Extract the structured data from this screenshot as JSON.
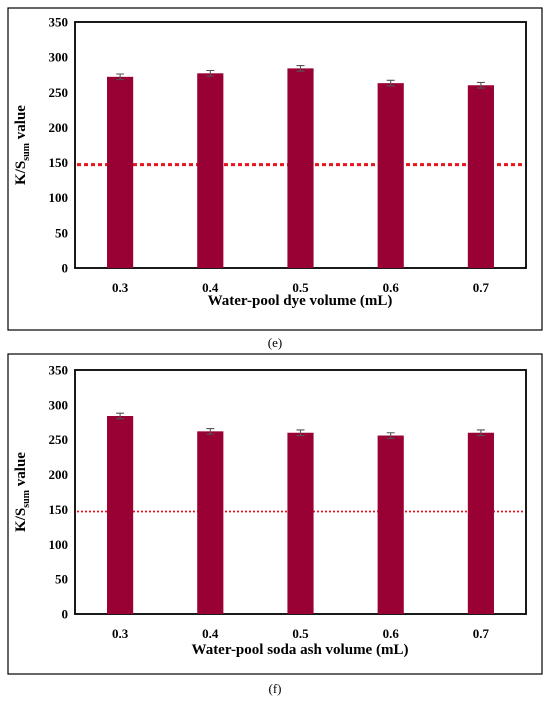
{
  "chart_data": [
    {
      "type": "bar",
      "panel_label": "(e)",
      "categories": [
        "0.3",
        "0.4",
        "0.5",
        "0.6",
        "0.7"
      ],
      "values": [
        272,
        277,
        284,
        263,
        260
      ],
      "errors": [
        4,
        4,
        4,
        4,
        4
      ],
      "reference_line": 147,
      "xlabel": "Water-pool dye volume (mL)",
      "ylabel_main": "K/S",
      "ylabel_sub": "sum",
      "ylabel_tail": " value",
      "ylim": [
        0,
        350
      ],
      "yticks": [
        "0",
        "50",
        "100",
        "150",
        "200",
        "250",
        "300",
        "350"
      ],
      "grid": false,
      "bar_color": "#990033",
      "reference_color": "#e8141e"
    },
    {
      "type": "bar",
      "panel_label": "(f)",
      "categories": [
        "0.3",
        "0.4",
        "0.5",
        "0.6",
        "0.7"
      ],
      "values": [
        284,
        262,
        260,
        256,
        260
      ],
      "errors": [
        4,
        4,
        4,
        4,
        4
      ],
      "reference_line": 147,
      "xlabel": "Water-pool soda ash volume (mL)",
      "ylabel_main": "K/S",
      "ylabel_sub": "sum",
      "ylabel_tail": " value",
      "ylim": [
        0,
        350
      ],
      "yticks": [
        "0",
        "50",
        "100",
        "150",
        "200",
        "250",
        "300",
        "350"
      ],
      "grid": false,
      "bar_color": "#990033",
      "reference_color": "#e8141e"
    }
  ]
}
